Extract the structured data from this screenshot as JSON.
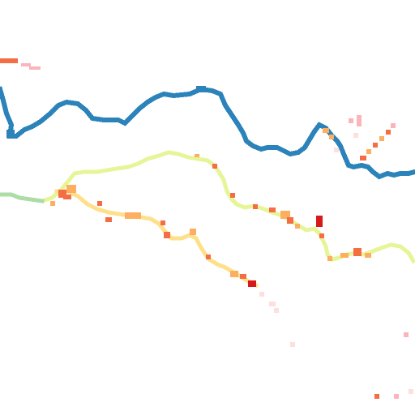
{
  "map": {
    "background_color": "#ffffff",
    "layers": [
      {
        "name": "blue-line-layer",
        "color": "#2b83ba"
      },
      {
        "name": "green-yellow-line-layer",
        "colors": [
          "#abdda4",
          "#e6f598",
          "#ffffbf"
        ]
      },
      {
        "name": "yellow-orange-line-layer",
        "colors": [
          "#fee08b",
          "#fdae61",
          "#f46d43",
          "#d7191c"
        ]
      },
      {
        "name": "sparse-points-layer",
        "colors": [
          "#fdae61",
          "#f46d43",
          "#fbb4b9",
          "#fde0dd"
        ]
      }
    ]
  }
}
